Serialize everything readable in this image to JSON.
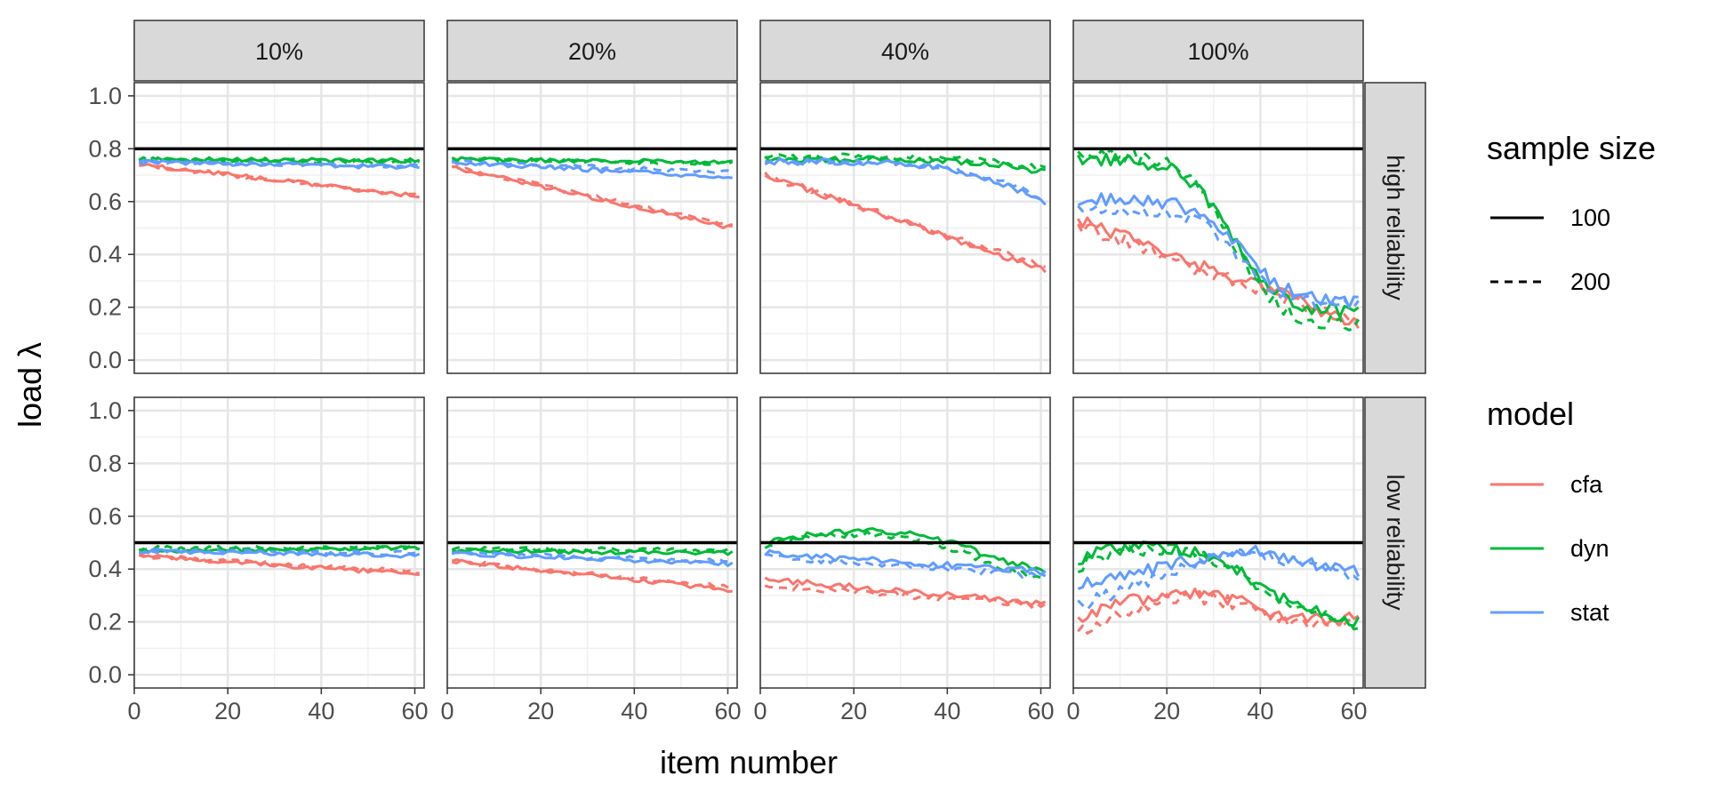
{
  "chart_data": {
    "type": "line",
    "facet_columns": [
      "10%",
      "20%",
      "40%",
      "100%"
    ],
    "facet_rows": [
      "high reliability",
      "low reliability"
    ],
    "xlabel": "item number",
    "ylabel": "load λ",
    "xlim": [
      0,
      62
    ],
    "ylim": [
      -0.05,
      1.05
    ],
    "x_ticks": [
      0,
      20,
      40,
      60
    ],
    "x_tick_labels": [
      "0",
      "20",
      "40",
      "60"
    ],
    "y_ticks": [
      0.0,
      0.2,
      0.4,
      0.6,
      0.8,
      1.0
    ],
    "y_tick_labels": [
      "0.0",
      "0.2",
      "0.4",
      "0.6",
      "0.8",
      "1.0"
    ],
    "grid": true,
    "legend_position": "right",
    "reference_lines": {
      "high reliability": 0.8,
      "low reliability": 0.5
    },
    "legend": {
      "linetype_title": "sample size",
      "linetype_entries": [
        {
          "label": "100",
          "linetype": "solid"
        },
        {
          "label": "200",
          "linetype": "dashed"
        }
      ],
      "color_title": "model",
      "color_entries": [
        {
          "label": "cfa",
          "color": "#F8766D"
        },
        {
          "label": "dyn",
          "color": "#00BA38"
        },
        {
          "label": "stat",
          "color": "#619CFF"
        }
      ]
    },
    "x_points": [
      1,
      61
    ],
    "series": [
      {
        "panel": "high reliability / 10%",
        "model": "cfa",
        "sample_size": "100",
        "start": 0.74,
        "end": 0.62
      },
      {
        "panel": "high reliability / 10%",
        "model": "cfa",
        "sample_size": "200",
        "start": 0.74,
        "end": 0.62
      },
      {
        "panel": "high reliability / 10%",
        "model": "dyn",
        "sample_size": "100",
        "start": 0.76,
        "end": 0.755
      },
      {
        "panel": "high reliability / 10%",
        "model": "dyn",
        "sample_size": "200",
        "start": 0.76,
        "end": 0.75
      },
      {
        "panel": "high reliability / 10%",
        "model": "stat",
        "sample_size": "100",
        "start": 0.75,
        "end": 0.73
      },
      {
        "panel": "high reliability / 10%",
        "model": "stat",
        "sample_size": "200",
        "start": 0.75,
        "end": 0.735
      },
      {
        "panel": "high reliability / 20%",
        "model": "cfa",
        "sample_size": "100",
        "start": 0.73,
        "end": 0.5
      },
      {
        "panel": "high reliability / 20%",
        "model": "cfa",
        "sample_size": "200",
        "start": 0.73,
        "end": 0.51
      },
      {
        "panel": "high reliability / 20%",
        "model": "dyn",
        "sample_size": "100",
        "start": 0.76,
        "end": 0.75
      },
      {
        "panel": "high reliability / 20%",
        "model": "dyn",
        "sample_size": "200",
        "start": 0.76,
        "end": 0.745
      },
      {
        "panel": "high reliability / 20%",
        "model": "stat",
        "sample_size": "100",
        "start": 0.75,
        "end": 0.69
      },
      {
        "panel": "high reliability / 20%",
        "model": "stat",
        "sample_size": "200",
        "start": 0.75,
        "end": 0.71
      },
      {
        "panel": "high reliability / 40%",
        "model": "cfa",
        "sample_size": "100",
        "start": 0.7,
        "end": 0.34
      },
      {
        "panel": "high reliability / 40%",
        "model": "cfa",
        "sample_size": "200",
        "start": 0.7,
        "end": 0.35
      },
      {
        "panel": "high reliability / 40%",
        "model": "dyn",
        "sample_size": "100",
        "start": 0.76,
        "end": 0.71
      },
      {
        "panel": "high reliability / 40%",
        "model": "dyn",
        "sample_size": "200",
        "start": 0.77,
        "end": 0.72
      },
      {
        "panel": "high reliability / 40%",
        "model": "stat",
        "sample_size": "100",
        "start": 0.75,
        "end": 0.59
      },
      {
        "panel": "high reliability / 40%",
        "model": "stat",
        "sample_size": "200",
        "start": 0.75,
        "end": 0.6
      },
      {
        "panel": "high reliability / 100%",
        "model": "cfa",
        "sample_size": "100",
        "start": 0.53,
        "end": 0.14
      },
      {
        "panel": "high reliability / 100%",
        "model": "cfa",
        "sample_size": "200",
        "start": 0.51,
        "end": 0.13
      },
      {
        "panel": "high reliability / 100%",
        "model": "dyn",
        "sample_size": "100",
        "start": 0.76,
        "end": 0.18
      },
      {
        "panel": "high reliability / 100%",
        "model": "dyn",
        "sample_size": "200",
        "start": 0.78,
        "end": 0.13
      },
      {
        "panel": "high reliability / 100%",
        "model": "stat",
        "sample_size": "100",
        "start": 0.61,
        "end": 0.22
      },
      {
        "panel": "high reliability / 100%",
        "model": "stat",
        "sample_size": "200",
        "start": 0.57,
        "end": 0.2
      },
      {
        "panel": "low reliability / 10%",
        "model": "cfa",
        "sample_size": "100",
        "start": 0.45,
        "end": 0.38
      },
      {
        "panel": "low reliability / 10%",
        "model": "cfa",
        "sample_size": "200",
        "start": 0.45,
        "end": 0.39
      },
      {
        "panel": "low reliability / 10%",
        "model": "dyn",
        "sample_size": "100",
        "start": 0.47,
        "end": 0.48
      },
      {
        "panel": "low reliability / 10%",
        "model": "dyn",
        "sample_size": "200",
        "start": 0.48,
        "end": 0.48
      },
      {
        "panel": "low reliability / 10%",
        "model": "stat",
        "sample_size": "100",
        "start": 0.47,
        "end": 0.45
      },
      {
        "panel": "low reliability / 10%",
        "model": "stat",
        "sample_size": "200",
        "start": 0.47,
        "end": 0.46
      },
      {
        "panel": "low reliability / 20%",
        "model": "cfa",
        "sample_size": "100",
        "start": 0.43,
        "end": 0.32
      },
      {
        "panel": "low reliability / 20%",
        "model": "cfa",
        "sample_size": "200",
        "start": 0.43,
        "end": 0.33
      },
      {
        "panel": "low reliability / 20%",
        "model": "dyn",
        "sample_size": "100",
        "start": 0.47,
        "end": 0.46
      },
      {
        "panel": "low reliability / 20%",
        "model": "dyn",
        "sample_size": "200",
        "start": 0.48,
        "end": 0.47
      },
      {
        "panel": "low reliability / 20%",
        "model": "stat",
        "sample_size": "100",
        "start": 0.46,
        "end": 0.42
      },
      {
        "panel": "low reliability / 20%",
        "model": "stat",
        "sample_size": "200",
        "start": 0.46,
        "end": 0.43
      },
      {
        "panel": "low reliability / 40%",
        "model": "cfa",
        "sample_size": "100",
        "start": 0.36,
        "end": 0.27
      },
      {
        "panel": "low reliability / 40%",
        "model": "cfa",
        "sample_size": "200",
        "start": 0.34,
        "end": 0.26
      },
      {
        "panel": "low reliability / 40%",
        "model": "dyn",
        "sample_size": "100",
        "start": 0.5,
        "end": 0.39
      },
      {
        "panel": "low reliability / 40%",
        "model": "dyn",
        "sample_size": "200",
        "start": 0.49,
        "end": 0.35
      },
      {
        "panel": "low reliability / 40%",
        "model": "stat",
        "sample_size": "100",
        "start": 0.46,
        "end": 0.39
      },
      {
        "panel": "low reliability / 40%",
        "model": "stat",
        "sample_size": "200",
        "start": 0.45,
        "end": 0.37
      },
      {
        "panel": "low reliability / 100%",
        "model": "cfa",
        "sample_size": "100",
        "start": 0.22,
        "end": 0.21
      },
      {
        "panel": "low reliability / 100%",
        "model": "cfa",
        "sample_size": "200",
        "start": 0.16,
        "end": 0.2
      },
      {
        "panel": "low reliability / 100%",
        "model": "dyn",
        "sample_size": "100",
        "start": 0.44,
        "end": 0.2
      },
      {
        "panel": "low reliability / 100%",
        "model": "dyn",
        "sample_size": "200",
        "start": 0.41,
        "end": 0.19
      },
      {
        "panel": "low reliability / 100%",
        "model": "stat",
        "sample_size": "100",
        "start": 0.34,
        "end": 0.39
      },
      {
        "panel": "low reliability / 100%",
        "model": "stat",
        "sample_size": "200",
        "start": 0.26,
        "end": 0.37
      }
    ]
  }
}
